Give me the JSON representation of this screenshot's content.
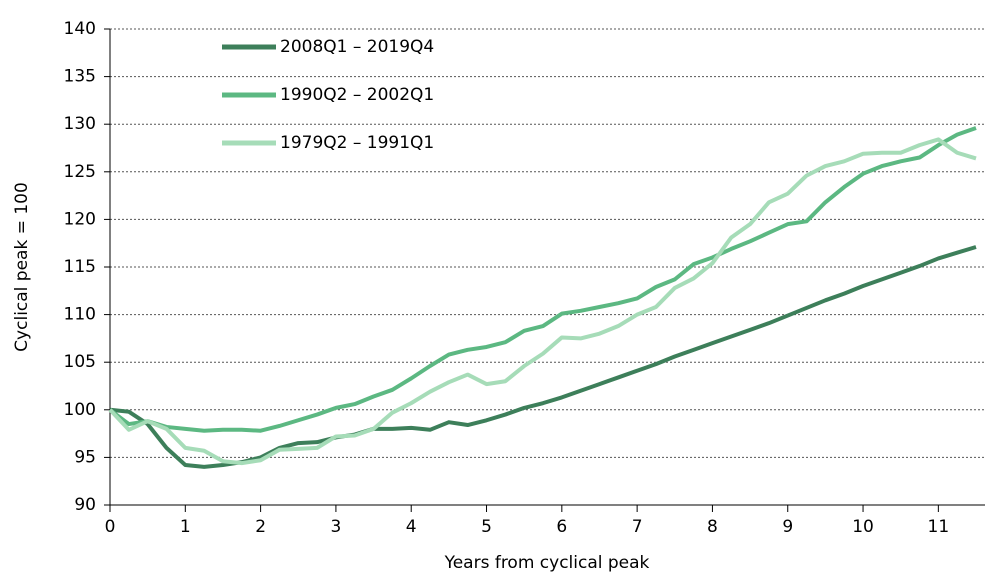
{
  "chart_data": {
    "type": "line",
    "y_label": "Cyclical peak = 100",
    "x_label": "Years from cyclical peak",
    "x": [
      0,
      0.25,
      0.5,
      0.75,
      1,
      1.25,
      1.5,
      1.75,
      2,
      2.25,
      2.5,
      2.75,
      3,
      3.25,
      3.5,
      3.75,
      4,
      4.25,
      4.5,
      4.75,
      5,
      5.25,
      5.5,
      5.75,
      6,
      6.25,
      6.5,
      6.75,
      7,
      7.25,
      7.5,
      7.75,
      8,
      8.25,
      8.5,
      8.75,
      9,
      9.25,
      9.5,
      9.75,
      10,
      10.25,
      10.5,
      10.75,
      11,
      11.25,
      11.5
    ],
    "series": [
      {
        "name": "2008Q1 – 2019Q4",
        "color": "#3d7f5a",
        "values": [
          100,
          99.8,
          98.5,
          96,
          94.2,
          94,
          94.2,
          94.5,
          95,
          96,
          96.5,
          96.6,
          97.1,
          97.4,
          98,
          98,
          98.1,
          97.9,
          98.7,
          98.4,
          98.9,
          99.5,
          100.2,
          100.7,
          101.3,
          102,
          102.7,
          103.4,
          104.1,
          104.8,
          105.6,
          106.3,
          107,
          107.7,
          108.4,
          109.1,
          109.9,
          110.7,
          111.5,
          112.2,
          113,
          113.7,
          114.4,
          115.1,
          115.9,
          116.5,
          117.1
        ]
      },
      {
        "name": "1990Q2 – 2002Q1",
        "color": "#5cb882",
        "values": [
          100,
          98.5,
          98.8,
          98.2,
          98,
          97.8,
          97.9,
          97.9,
          97.8,
          98.3,
          98.9,
          99.5,
          100.2,
          100.6,
          101.4,
          102.1,
          103.3,
          104.6,
          105.8,
          106.3,
          106.6,
          107.1,
          108.3,
          108.8,
          110.1,
          110.4,
          110.8,
          111.2,
          111.7,
          112.9,
          113.7,
          115.3,
          116,
          116.9,
          117.7,
          118.6,
          119.5,
          119.8,
          121.8,
          123.4,
          124.8,
          125.6,
          126.1,
          126.5,
          127.8,
          128.9,
          129.6
        ]
      },
      {
        "name": "1979Q2 – 1991Q1",
        "color": "#a6dcb8",
        "values": [
          100,
          97.9,
          98.8,
          98,
          96,
          95.7,
          94.6,
          94.4,
          94.7,
          95.8,
          95.9,
          96,
          97.2,
          97.3,
          98,
          99.7,
          100.7,
          101.9,
          102.9,
          103.7,
          102.7,
          103,
          104.6,
          105.9,
          107.6,
          107.5,
          108,
          108.8,
          110,
          110.8,
          112.8,
          113.8,
          115.4,
          118.1,
          119.5,
          121.8,
          122.7,
          124.6,
          125.6,
          126.1,
          126.9,
          127,
          127,
          127.8,
          128.4,
          127,
          126.4
        ]
      }
    ],
    "xlim": [
      0,
      11.5
    ],
    "xticks": [
      0,
      1,
      2,
      3,
      4,
      5,
      6,
      7,
      8,
      9,
      10,
      11
    ],
    "ylim": [
      90,
      140
    ],
    "yticks": [
      90,
      95,
      100,
      105,
      110,
      115,
      120,
      125,
      130,
      135,
      140
    ],
    "grid": true,
    "legend": "top-left"
  }
}
